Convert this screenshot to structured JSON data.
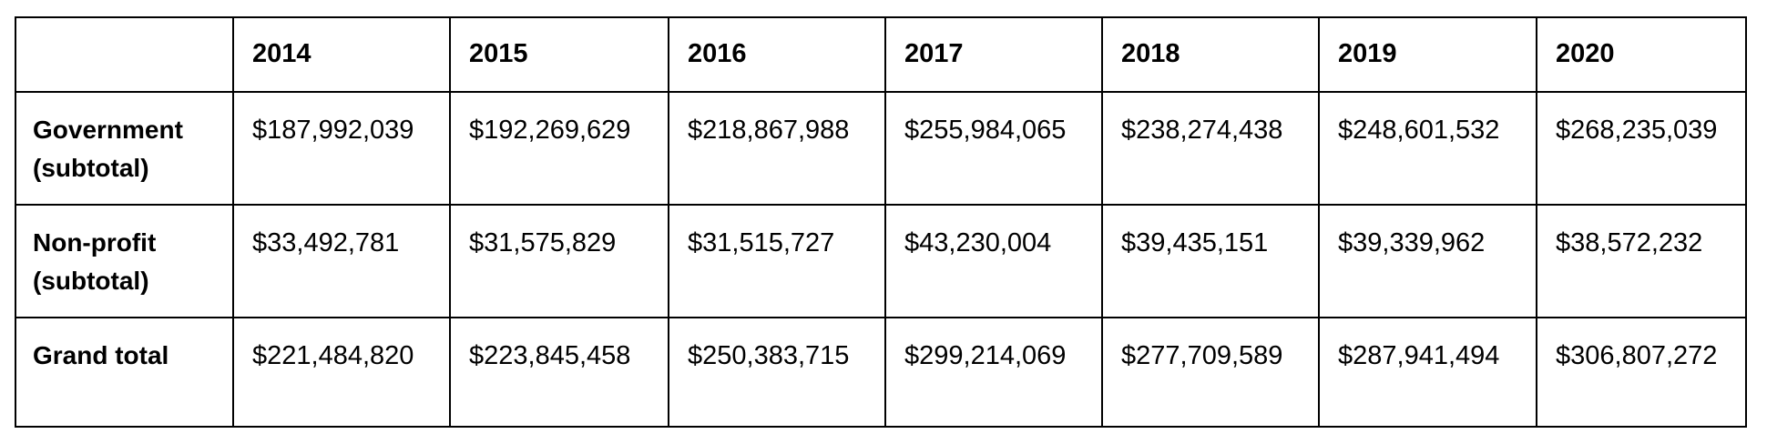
{
  "table": {
    "corner": "",
    "years": [
      "2014",
      "2015",
      "2016",
      "2017",
      "2018",
      "2019",
      "2020"
    ],
    "rows": [
      {
        "label_line1": "Government",
        "label_line2": "(subtotal)",
        "values": [
          "$187,992,039",
          "$192,269,629",
          "$218,867,988",
          "$255,984,065",
          "$238,274,438",
          "$248,601,532",
          "$268,235,039"
        ]
      },
      {
        "label_line1": "Non-profit",
        "label_line2": "(subtotal)",
        "values": [
          "$33,492,781",
          "$31,575,829",
          "$31,515,727",
          "$43,230,004",
          "$39,435,151",
          "$39,339,962",
          "$38,572,232"
        ]
      },
      {
        "label_line1": "Grand total",
        "label_line2": "",
        "values": [
          "$221,484,820",
          "$223,845,458",
          "$250,383,715",
          "$299,214,069",
          "$277,709,589",
          "$287,941,494",
          "$306,807,272"
        ]
      }
    ]
  }
}
